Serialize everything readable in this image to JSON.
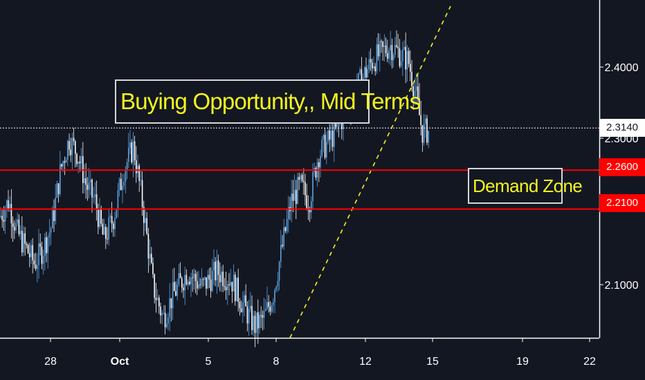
{
  "chart_data": {
    "type": "candlestick",
    "title": "",
    "xlabel": "",
    "ylabel": "",
    "x_ticks": [
      "28",
      "Oct",
      "5",
      "8",
      "12",
      "15",
      "19",
      "22"
    ],
    "y_ticks": [
      "2.4000",
      "2.3000",
      "2.1000"
    ],
    "ylim": [
      2.045,
      2.478
    ],
    "current_price": {
      "label": "2.3140",
      "value": 2.314
    },
    "levels": [
      {
        "label": "2.2600",
        "value": 2.26,
        "color": "#ff0000"
      },
      {
        "label": "2.2100",
        "value": 2.21,
        "color": "#ff0000"
      }
    ],
    "trendline": {
      "style": "dashed",
      "color": "#f5f51e",
      "from": {
        "x": "8",
        "y": 2.045
      },
      "to": {
        "x": "15",
        "y": 2.47
      }
    },
    "annotations": [
      {
        "id": "buying",
        "text": "Buying Opportunity,, Mid Terms"
      },
      {
        "id": "demand",
        "text": "Demand Zone"
      }
    ],
    "close_path": [
      [
        "28",
        2.2
      ],
      [
        "28",
        2.22
      ],
      [
        "28",
        2.18
      ],
      [
        "28",
        2.16
      ],
      [
        "28",
        2.14
      ],
      [
        "28",
        2.16
      ],
      [
        "28",
        2.19
      ],
      [
        "28",
        2.26
      ],
      [
        "28",
        2.3
      ],
      [
        "28",
        2.28
      ],
      [
        "28",
        2.24
      ],
      [
        "28",
        2.22
      ],
      [
        "Oct",
        2.17
      ],
      [
        "Oct",
        2.2
      ],
      [
        "Oct",
        2.26
      ],
      [
        "Oct",
        2.29
      ],
      [
        "Oct",
        2.21
      ],
      [
        "Oct",
        2.11
      ],
      [
        "Oct",
        2.07
      ],
      [
        "5",
        2.1
      ],
      [
        "5",
        2.13
      ],
      [
        "5",
        2.11
      ],
      [
        "5",
        2.13
      ],
      [
        "5",
        2.12
      ],
      [
        "8",
        2.08
      ],
      [
        "8",
        2.06
      ],
      [
        "8",
        2.07
      ],
      [
        "8",
        2.1
      ],
      [
        "8",
        2.16
      ],
      [
        "8",
        2.22
      ],
      [
        "8",
        2.24
      ],
      [
        "8",
        2.22
      ],
      [
        "12",
        2.28
      ],
      [
        "12",
        2.31
      ],
      [
        "12",
        2.36
      ],
      [
        "12",
        2.4
      ],
      [
        "12",
        2.42
      ],
      [
        "15",
        2.4
      ],
      [
        "15",
        2.36
      ],
      [
        "15",
        2.31
      ]
    ],
    "colors": {
      "background": "#131722",
      "up": "#5aa5e6",
      "down": "#ffffff",
      "axis": "#ffffff"
    },
    "grid": false
  }
}
